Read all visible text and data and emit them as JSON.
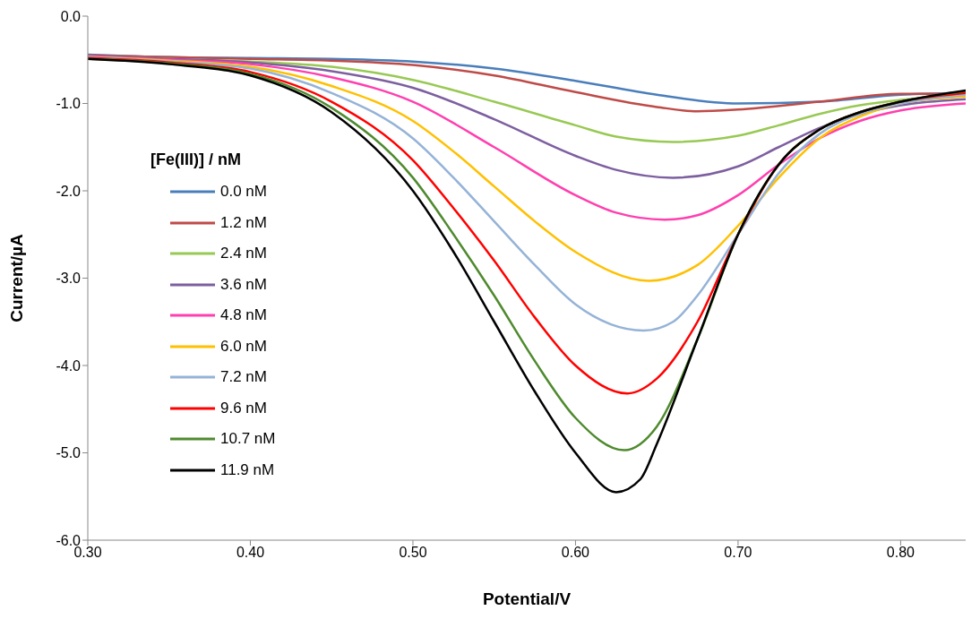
{
  "chart_data": {
    "type": "line",
    "xlabel": "Potential/V",
    "ylabel": "Current/µA",
    "legend_title": "[Fe(III)] / nM",
    "legend": "left",
    "grid": false,
    "marker": "none",
    "line_style": "solid",
    "xlim": [
      0.3,
      0.84
    ],
    "xticks": [
      {
        "value": 0.3,
        "label": "0.30"
      },
      {
        "value": 0.4,
        "label": "0.40"
      },
      {
        "value": 0.5,
        "label": "0.50"
      },
      {
        "value": 0.6,
        "label": "0.60"
      },
      {
        "value": 0.7,
        "label": "0.70"
      },
      {
        "value": 0.8,
        "label": "0.80"
      }
    ],
    "ylim": [
      -6,
      0
    ],
    "yticks": [
      {
        "value": 0,
        "label": "0.0"
      },
      {
        "value": -1,
        "label": "-1.0"
      },
      {
        "value": -2,
        "label": "-2.0"
      },
      {
        "value": -3,
        "label": "-3.0"
      },
      {
        "value": -4,
        "label": "-4.0"
      },
      {
        "value": -5,
        "label": "-5.0"
      },
      {
        "value": -6,
        "label": "-6.0"
      }
    ],
    "series": [
      {
        "name": "0.0 nM",
        "color": "#4a7ebb",
        "x": [
          0.3,
          0.35,
          0.4,
          0.45,
          0.5,
          0.55,
          0.6,
          0.65,
          0.7,
          0.75,
          0.8,
          0.84
        ],
        "values": [
          -0.44,
          -0.47,
          -0.48,
          -0.49,
          -0.52,
          -0.6,
          -0.74,
          -0.9,
          -1.0,
          -0.98,
          -0.9,
          -0.88
        ]
      },
      {
        "name": "1.2 nM",
        "color": "#be4b48",
        "x": [
          0.3,
          0.35,
          0.4,
          0.45,
          0.5,
          0.55,
          0.6,
          0.65,
          0.675,
          0.7,
          0.75,
          0.8,
          0.84
        ],
        "values": [
          -0.45,
          -0.47,
          -0.49,
          -0.51,
          -0.56,
          -0.68,
          -0.87,
          -1.04,
          -1.09,
          -1.07,
          -0.98,
          -0.89,
          -0.89
        ]
      },
      {
        "name": "2.4 nM",
        "color": "#98c954",
        "x": [
          0.3,
          0.35,
          0.4,
          0.45,
          0.5,
          0.55,
          0.6,
          0.625,
          0.66,
          0.7,
          0.725,
          0.75,
          0.775,
          0.8,
          0.84
        ],
        "values": [
          -0.46,
          -0.49,
          -0.52,
          -0.58,
          -0.73,
          -0.98,
          -1.25,
          -1.38,
          -1.44,
          -1.37,
          -1.25,
          -1.12,
          -1.02,
          -0.96,
          -0.9
        ]
      },
      {
        "name": "3.6 nM",
        "color": "#7d5fa0",
        "x": [
          0.3,
          0.35,
          0.4,
          0.45,
          0.5,
          0.55,
          0.6,
          0.625,
          0.66,
          0.7,
          0.725,
          0.75,
          0.775,
          0.8,
          0.84
        ],
        "values": [
          -0.46,
          -0.49,
          -0.53,
          -0.63,
          -0.82,
          -1.18,
          -1.6,
          -1.76,
          -1.85,
          -1.72,
          -1.5,
          -1.28,
          -1.12,
          -1.02,
          -0.95
        ]
      },
      {
        "name": "4.8 nM",
        "color": "#ff3fae",
        "x": [
          0.3,
          0.35,
          0.4,
          0.45,
          0.5,
          0.55,
          0.6,
          0.625,
          0.655,
          0.675,
          0.7,
          0.725,
          0.75,
          0.775,
          0.8,
          0.84
        ],
        "values": [
          -0.46,
          -0.5,
          -0.55,
          -0.7,
          -0.98,
          -1.5,
          -2.05,
          -2.25,
          -2.33,
          -2.28,
          -2.05,
          -1.7,
          -1.4,
          -1.2,
          -1.08,
          -1.0
        ]
      },
      {
        "name": "6.0 nM",
        "color": "#ffc000",
        "x": [
          0.3,
          0.35,
          0.4,
          0.45,
          0.5,
          0.525,
          0.55,
          0.575,
          0.6,
          0.645,
          0.675,
          0.7,
          0.725,
          0.75,
          0.775,
          0.8,
          0.84
        ],
        "values": [
          -0.47,
          -0.51,
          -0.58,
          -0.8,
          -1.2,
          -1.55,
          -1.95,
          -2.35,
          -2.7,
          -3.03,
          -2.85,
          -2.4,
          -1.85,
          -1.4,
          -1.15,
          -1.0,
          -0.92
        ]
      },
      {
        "name": "7.2 nM",
        "color": "#95b3d7",
        "x": [
          0.3,
          0.35,
          0.4,
          0.45,
          0.5,
          0.525,
          0.55,
          0.575,
          0.6,
          0.642,
          0.66,
          0.675,
          0.7,
          0.725,
          0.75,
          0.775,
          0.8,
          0.84
        ],
        "values": [
          -0.47,
          -0.52,
          -0.6,
          -0.88,
          -1.4,
          -1.85,
          -2.35,
          -2.85,
          -3.3,
          -3.6,
          -3.5,
          -3.2,
          -2.5,
          -1.8,
          -1.35,
          -1.12,
          -1.0,
          -0.9
        ]
      },
      {
        "name": "9.6 nM",
        "color": "#ff0000",
        "x": [
          0.3,
          0.35,
          0.4,
          0.45,
          0.5,
          0.525,
          0.55,
          0.575,
          0.6,
          0.632,
          0.65,
          0.675,
          0.7,
          0.725,
          0.75,
          0.775,
          0.8,
          0.84
        ],
        "values": [
          -0.48,
          -0.53,
          -0.64,
          -0.98,
          -1.65,
          -2.2,
          -2.8,
          -3.45,
          -4.0,
          -4.32,
          -4.15,
          -3.5,
          -2.5,
          -1.7,
          -1.3,
          -1.1,
          -0.98,
          -0.88
        ]
      },
      {
        "name": "10.7 nM",
        "color": "#4f8a2e",
        "x": [
          0.3,
          0.35,
          0.4,
          0.45,
          0.5,
          0.525,
          0.55,
          0.575,
          0.6,
          0.63,
          0.65,
          0.675,
          0.7,
          0.725,
          0.75,
          0.775,
          0.8,
          0.84
        ],
        "values": [
          -0.49,
          -0.54,
          -0.66,
          -1.05,
          -1.85,
          -2.5,
          -3.2,
          -3.95,
          -4.6,
          -4.97,
          -4.7,
          -3.7,
          -2.5,
          -1.7,
          -1.3,
          -1.1,
          -0.98,
          -0.86
        ]
      },
      {
        "name": "11.9 nM",
        "color": "#000000",
        "x": [
          0.3,
          0.35,
          0.4,
          0.45,
          0.5,
          0.525,
          0.55,
          0.575,
          0.6,
          0.625,
          0.64,
          0.65,
          0.675,
          0.7,
          0.725,
          0.75,
          0.775,
          0.8,
          0.84
        ],
        "values": [
          -0.49,
          -0.55,
          -0.68,
          -1.1,
          -2.0,
          -2.7,
          -3.5,
          -4.3,
          -5.0,
          -5.45,
          -5.3,
          -4.9,
          -3.7,
          -2.5,
          -1.7,
          -1.3,
          -1.1,
          -0.98,
          -0.85
        ]
      }
    ]
  }
}
